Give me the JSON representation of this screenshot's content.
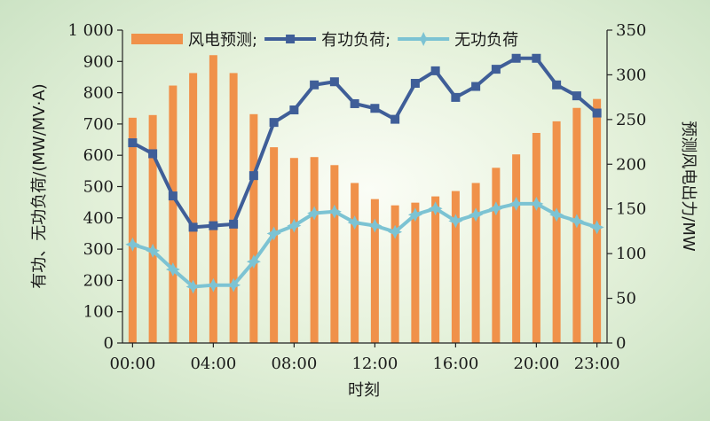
{
  "chart_data": {
    "type": "bar+line",
    "x": [
      "00:00",
      "01:00",
      "02:00",
      "03:00",
      "04:00",
      "05:00",
      "06:00",
      "07:00",
      "08:00",
      "09:00",
      "10:00",
      "11:00",
      "12:00",
      "13:00",
      "14:00",
      "15:00",
      "16:00",
      "17:00",
      "18:00",
      "19:00",
      "20:00",
      "21:00",
      "22:00",
      "23:00"
    ],
    "x_tick_labels": [
      "00:00",
      "04:00",
      "08:00",
      "12:00",
      "16:00",
      "20:00",
      "23:00"
    ],
    "xlabel": "时刻",
    "ylabel_left": "有功、无功负荷/(MW/MV·A)",
    "ylabel_right": "预测风电出力/MW",
    "ylim_left": [
      0,
      1000
    ],
    "ylim_right": [
      0,
      350
    ],
    "y_ticks_left": [
      "0",
      "100",
      "200",
      "300",
      "400",
      "500",
      "600",
      "700",
      "800",
      "900",
      "1 000"
    ],
    "y_ticks_right": [
      "0",
      "50",
      "100",
      "150",
      "200",
      "250",
      "300",
      "350"
    ],
    "legend_position": "top",
    "series": [
      {
        "name": "风电预测",
        "kind": "bar",
        "axis": "right",
        "color": "#f0914a",
        "values": [
          252,
          255,
          288,
          302,
          322,
          302,
          256,
          219,
          207,
          208,
          199,
          179,
          161,
          154,
          157,
          164,
          170,
          179,
          196,
          211,
          235,
          248,
          263,
          273
        ]
      },
      {
        "name": "有功负荷",
        "kind": "line",
        "axis": "left",
        "color": "#3f5e98",
        "marker": "square",
        "values": [
          640,
          605,
          470,
          370,
          375,
          380,
          535,
          705,
          745,
          825,
          835,
          765,
          750,
          715,
          830,
          870,
          785,
          820,
          875,
          910,
          910,
          825,
          790,
          735
        ]
      },
      {
        "name": "无功负荷",
        "kind": "line",
        "axis": "left",
        "color": "#7cc3d3",
        "marker": "star",
        "values": [
          315,
          295,
          235,
          180,
          185,
          185,
          260,
          350,
          375,
          415,
          420,
          385,
          375,
          355,
          410,
          430,
          390,
          410,
          430,
          445,
          445,
          410,
          390,
          370
        ]
      }
    ],
    "legend_separator": ";"
  }
}
